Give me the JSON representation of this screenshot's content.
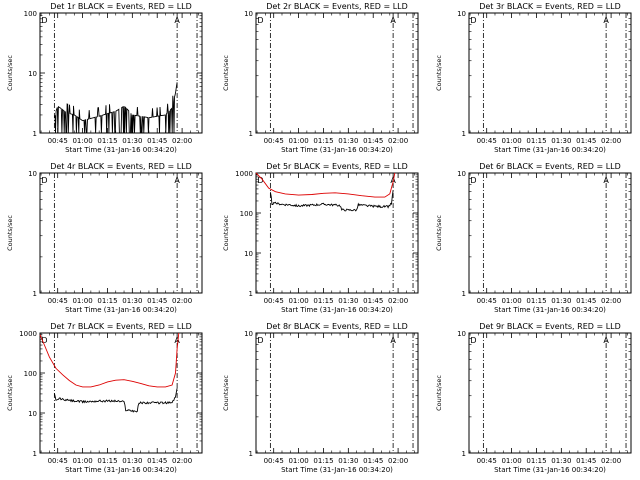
{
  "colors": {
    "events": "#000000",
    "lld": "#dd0000",
    "background": "#ffffff"
  },
  "chart_data": [
    {
      "type": "line",
      "detector": "1r",
      "title": "Det 1r BLACK = Events, RED = LLD",
      "ylabel": "Counts/sec",
      "xlabel": "Start Time (31-Jan-16 00:34:20)",
      "ylog": true,
      "ylim": [
        1,
        100
      ],
      "yticks": [
        "1",
        "10",
        "100"
      ],
      "xlim": [
        "00:34:20",
        "02:12:00"
      ],
      "xticks": [
        "00:45",
        "01:00",
        "01:15",
        "01:30",
        "01:45",
        "02:00"
      ],
      "markers": [
        {
          "label": "D",
          "time": "00:37"
        },
        {
          "label": "A",
          "time": "01:57"
        }
      ],
      "vlines": [
        "00:43",
        "01:57",
        "02:09"
      ],
      "series": [
        {
          "name": "Events",
          "color": "#000000",
          "style": "spiky",
          "points": [
            [
              "00:43",
              1.8
            ],
            [
              "00:45",
              2.8
            ],
            [
              "00:50",
              2.2
            ],
            [
              "00:55",
              2.0
            ],
            [
              "01:00",
              1.6
            ],
            [
              "01:10",
              1.9
            ],
            [
              "01:20",
              2.3
            ],
            [
              "01:25",
              2.8
            ],
            [
              "01:30",
              2.0
            ],
            [
              "01:40",
              1.8
            ],
            [
              "01:50",
              2.0
            ],
            [
              "01:54",
              2.6
            ],
            [
              "01:56",
              4.5
            ],
            [
              "01:57",
              7.0
            ]
          ]
        }
      ]
    },
    {
      "type": "line",
      "detector": "2r",
      "title": "Det 2r BLACK = Events, RED = LLD",
      "ylabel": "Counts/sec",
      "xlabel": "Start Time (31-Jan-16 00:34:20)",
      "ylog": true,
      "ylim": [
        1,
        10
      ],
      "yticks": [
        "1",
        "10"
      ],
      "xlim": [
        "00:34:20",
        "02:12:00"
      ],
      "xticks": [
        "00:45",
        "01:00",
        "01:15",
        "01:30",
        "01:45",
        "02:00"
      ],
      "markers": [
        {
          "label": "D",
          "time": "00:37"
        },
        {
          "label": "A",
          "time": "01:57"
        }
      ],
      "vlines": [
        "00:43",
        "01:57",
        "02:09"
      ],
      "series": []
    },
    {
      "type": "line",
      "detector": "3r",
      "title": "Det 3r BLACK = Events, RED = LLD",
      "ylabel": "Counts/sec",
      "xlabel": "Start Time (31-Jan-16 00:34:20)",
      "ylog": true,
      "ylim": [
        1,
        10
      ],
      "yticks": [
        "1",
        "10"
      ],
      "xlim": [
        "00:34:20",
        "02:12:00"
      ],
      "xticks": [
        "00:45",
        "01:00",
        "01:15",
        "01:30",
        "01:45",
        "02:00"
      ],
      "markers": [
        {
          "label": "D",
          "time": "00:37"
        },
        {
          "label": "A",
          "time": "01:57"
        }
      ],
      "vlines": [
        "00:43",
        "01:57",
        "02:09"
      ],
      "series": []
    },
    {
      "type": "line",
      "detector": "4r",
      "title": "Det 4r BLACK = Events, RED = LLD",
      "ylabel": "Counts/sec",
      "xlabel": "Start Time (31-Jan-16 00:34:20)",
      "ylog": true,
      "ylim": [
        1,
        10
      ],
      "yticks": [
        "1",
        "10"
      ],
      "xlim": [
        "00:34:20",
        "02:12:00"
      ],
      "xticks": [
        "00:45",
        "01:00",
        "01:15",
        "01:30",
        "01:45",
        "02:00"
      ],
      "markers": [
        {
          "label": "D",
          "time": "00:37"
        },
        {
          "label": "A",
          "time": "01:57"
        }
      ],
      "vlines": [
        "00:43",
        "01:57",
        "02:09"
      ],
      "series": []
    },
    {
      "type": "line",
      "detector": "5r",
      "title": "Det 5r BLACK = Events, RED = LLD",
      "ylabel": "Counts/sec",
      "xlabel": "Start Time (31-Jan-16 00:34:20)",
      "ylog": true,
      "ylim": [
        1,
        1000
      ],
      "yticks": [
        "1",
        "10",
        "100",
        "1000"
      ],
      "xlim": [
        "00:34:20",
        "02:12:00"
      ],
      "xticks": [
        "00:45",
        "01:00",
        "01:15",
        "01:30",
        "01:45",
        "02:00"
      ],
      "markers": [
        {
          "label": "D",
          "time": "00:37"
        },
        {
          "label": "A",
          "time": "01:57"
        }
      ],
      "vlines": [
        "00:43",
        "01:57",
        "02:09"
      ],
      "series": [
        {
          "name": "LLD",
          "color": "#dd0000",
          "style": "smooth",
          "points": [
            [
              "00:34:20",
              1000
            ],
            [
              "00:38",
              700
            ],
            [
              "00:42",
              420
            ],
            [
              "00:46",
              340
            ],
            [
              "00:52",
              300
            ],
            [
              "01:00",
              280
            ],
            [
              "01:08",
              290
            ],
            [
              "01:15",
              310
            ],
            [
              "01:22",
              320
            ],
            [
              "01:30",
              300
            ],
            [
              "01:38",
              270
            ],
            [
              "01:46",
              250
            ],
            [
              "01:52",
              250
            ],
            [
              "01:55",
              300
            ],
            [
              "01:57",
              600
            ],
            [
              "01:58",
              1000
            ]
          ]
        },
        {
          "name": "Events",
          "color": "#000000",
          "style": "noisy",
          "points": [
            [
              "00:43",
              320
            ],
            [
              "00:44",
              170
            ],
            [
              "00:46",
              175
            ],
            [
              "00:50",
              165
            ],
            [
              "00:55",
              160
            ],
            [
              "01:00",
              150
            ],
            [
              "01:05",
              155
            ],
            [
              "01:10",
              160
            ],
            [
              "01:15",
              165
            ],
            [
              "01:20",
              160
            ],
            [
              "01:25",
              155
            ],
            [
              "01:26",
              120
            ],
            [
              "01:35",
              118
            ],
            [
              "01:36",
              160
            ],
            [
              "01:42",
              150
            ],
            [
              "01:50",
              145
            ],
            [
              "01:54",
              145
            ],
            [
              "01:56",
              170
            ],
            [
              "01:57",
              350
            ]
          ]
        }
      ]
    },
    {
      "type": "line",
      "detector": "6r",
      "title": "Det 6r BLACK = Events, RED = LLD",
      "ylabel": "Counts/sec",
      "xlabel": "Start Time (31-Jan-16 00:34:20)",
      "ylog": true,
      "ylim": [
        1,
        10
      ],
      "yticks": [
        "1",
        "10"
      ],
      "xlim": [
        "00:34:20",
        "02:12:00"
      ],
      "xticks": [
        "00:45",
        "01:00",
        "01:15",
        "01:30",
        "01:45",
        "02:00"
      ],
      "markers": [
        {
          "label": "D",
          "time": "00:37"
        },
        {
          "label": "A",
          "time": "01:57"
        }
      ],
      "vlines": [
        "00:43",
        "01:57",
        "02:09"
      ],
      "series": []
    },
    {
      "type": "line",
      "detector": "7r",
      "title": "Det 7r BLACK = Events, RED = LLD",
      "ylabel": "Counts/sec",
      "xlabel": "Start Time (31-Jan-16 00:34:20)",
      "ylog": true,
      "ylim": [
        1,
        1000
      ],
      "yticks": [
        "1",
        "10",
        "100",
        "1000"
      ],
      "xlim": [
        "00:34:20",
        "02:12:00"
      ],
      "xticks": [
        "00:45",
        "01:00",
        "01:15",
        "01:30",
        "01:45",
        "02:00"
      ],
      "markers": [
        {
          "label": "D",
          "time": "00:37"
        },
        {
          "label": "A",
          "time": "01:57"
        }
      ],
      "vlines": [
        "00:43",
        "01:57",
        "02:09"
      ],
      "series": [
        {
          "name": "LLD",
          "color": "#dd0000",
          "style": "smooth",
          "points": [
            [
              "00:34:20",
              900
            ],
            [
              "00:37",
              500
            ],
            [
              "00:40",
              250
            ],
            [
              "00:44",
              130
            ],
            [
              "00:48",
              90
            ],
            [
              "00:52",
              65
            ],
            [
              "00:56",
              50
            ],
            [
              "01:00",
              45
            ],
            [
              "01:05",
              45
            ],
            [
              "01:10",
              50
            ],
            [
              "01:15",
              60
            ],
            [
              "01:20",
              66
            ],
            [
              "01:25",
              68
            ],
            [
              "01:30",
              62
            ],
            [
              "01:35",
              55
            ],
            [
              "01:40",
              48
            ],
            [
              "01:45",
              45
            ],
            [
              "01:50",
              45
            ],
            [
              "01:54",
              50
            ],
            [
              "01:56",
              100
            ],
            [
              "01:57",
              400
            ],
            [
              "01:58",
              1000
            ]
          ]
        },
        {
          "name": "Events",
          "color": "#000000",
          "style": "noisy",
          "points": [
            [
              "00:43",
              30
            ],
            [
              "00:44",
              20
            ],
            [
              "00:46",
              23
            ],
            [
              "00:50",
              21
            ],
            [
              "00:55",
              20
            ],
            [
              "01:00",
              19
            ],
            [
              "01:10",
              20
            ],
            [
              "01:20",
              20
            ],
            [
              "01:25",
              19
            ],
            [
              "01:26",
              12
            ],
            [
              "01:33",
              11
            ],
            [
              "01:34",
              18
            ],
            [
              "01:40",
              18
            ],
            [
              "01:50",
              18
            ],
            [
              "01:54",
              18
            ],
            [
              "01:56",
              25
            ],
            [
              "01:57",
              40
            ]
          ]
        }
      ]
    },
    {
      "type": "line",
      "detector": "8r",
      "title": "Det 8r BLACK = Events, RED = LLD",
      "ylabel": "Counts/sec",
      "xlabel": "Start Time (31-Jan-16 00:34:20)",
      "ylog": true,
      "ylim": [
        1,
        10
      ],
      "yticks": [
        "1",
        "10"
      ],
      "xlim": [
        "00:34:20",
        "02:12:00"
      ],
      "xticks": [
        "00:45",
        "01:00",
        "01:15",
        "01:30",
        "01:45",
        "02:00"
      ],
      "markers": [
        {
          "label": "D",
          "time": "00:37"
        },
        {
          "label": "A",
          "time": "01:57"
        }
      ],
      "vlines": [
        "00:43",
        "01:57",
        "02:09"
      ],
      "series": []
    },
    {
      "type": "line",
      "detector": "9r",
      "title": "Det 9r BLACK = Events, RED = LLD",
      "ylabel": "Counts/sec",
      "xlabel": "Start Time (31-Jan-16 00:34:20)",
      "ylog": true,
      "ylim": [
        1,
        10
      ],
      "yticks": [
        "1",
        "10"
      ],
      "xlim": [
        "00:34:20",
        "02:12:00"
      ],
      "xticks": [
        "00:45",
        "01:00",
        "01:15",
        "01:30",
        "01:45",
        "02:00"
      ],
      "markers": [
        {
          "label": "D",
          "time": "00:37"
        },
        {
          "label": "A",
          "time": "01:57"
        }
      ],
      "vlines": [
        "00:43",
        "01:57",
        "02:09"
      ],
      "series": []
    }
  ]
}
